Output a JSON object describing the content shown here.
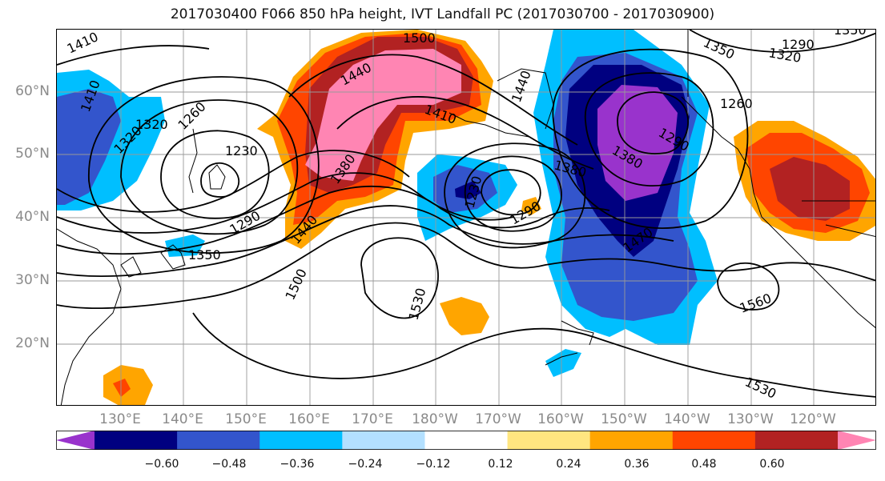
{
  "title": "2017030400 F066 850 hPa height, IVT Landfall PC (2017030700 - 2017030900)",
  "lat_labels": [
    "60°N",
    "50°N",
    "40°N",
    "30°N",
    "20°N"
  ],
  "lon_labels": [
    "130°E",
    "140°E",
    "150°E",
    "160°E",
    "170°E",
    "180°W",
    "170°W",
    "160°W",
    "150°W",
    "140°W",
    "130°W",
    "120°W"
  ],
  "contour_labels": [
    "1410",
    "1500",
    "1440",
    "1410",
    "1320",
    "1260",
    "1230",
    "1290",
    "1350",
    "1380",
    "1440",
    "1500",
    "1530",
    "1380",
    "1380",
    "1290",
    "1470",
    "1560",
    "1530",
    "1350",
    "1290",
    "1320",
    "1260",
    "1320",
    "1410",
    "1230",
    "1290",
    "1350",
    "1440",
    "1290",
    "1380"
  ],
  "colorbar": {
    "ticks": [
      "−0.60",
      "−0.48",
      "−0.36",
      "−0.24",
      "−0.12",
      "0.12",
      "0.24",
      "0.36",
      "0.48",
      "0.60"
    ],
    "colors": [
      "#9933cc",
      "#000080",
      "#3355cc",
      "#00bfff",
      "#b3e0ff",
      "#ffffff",
      "#ffe680",
      "#ffa500",
      "#ff4500",
      "#b22222",
      "#ff85b3"
    ]
  }
}
